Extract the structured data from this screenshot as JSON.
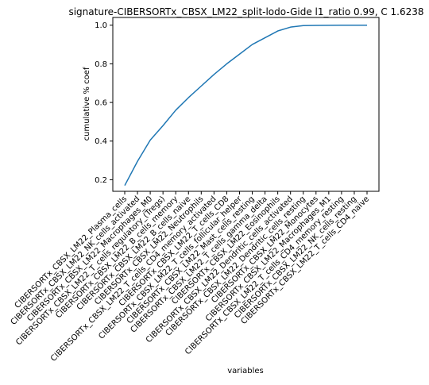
{
  "chart_data": {
    "type": "line",
    "title": "signature-CIBERSORTx_CBSX_LM22_split-lodo-Gide l1_ratio 0.99, C 1.6238",
    "xlabel": "variables",
    "ylabel": "cumulative % coef",
    "ylim": [
      0.14,
      1.04
    ],
    "yticks": [
      "0.2",
      "0.4",
      "0.6",
      "0.8",
      "1.0"
    ],
    "grid": false,
    "series_color": "#1f77b4",
    "categories": [
      "CIBERSORTx_CBSX_LM22_Plasma_cells",
      "CIBERSORTx_CBSX_LM22_NK_cells_activated",
      "CIBERSORTx_CBSX_LM22_Macrophages_M0",
      "CIBERSORTx_CBSX_LM22_T_cells_regulatory_(Tregs)",
      "CIBERSORTx_CBSX_LM22_B_cells_memory",
      "CIBERSORTx_CBSX_LM22_B_cells_naive",
      "CIBERSORTx_CBSX_LM22_Neutrophils",
      "CIBERSORTx_CBSX_LM22_T_cells_CD4_memory_activated",
      "CIBERSORTx_CBSX_LM22_T_cells_CD8",
      "CIBERSORTx_CBSX_LM22_T_cells_follicular_helper",
      "CIBERSORTx_CBSX_LM22_Mast_cells_resting",
      "CIBERSORTx_CBSX_LM22_T_cells_gamma_delta",
      "CIBERSORTx_CBSX_LM22_Eosinophils",
      "CIBERSORTx_CBSX_LM22_Dendritic_cells_activated",
      "CIBERSORTx_CBSX_LM22_Dendritic_cells_resting",
      "CIBERSORTx_CBSX_LM22_Monocytes",
      "CIBERSORTx_CBSX_LM22_Macrophages_M1",
      "CIBERSORTx_CBSX_LM22_T_cells_CD4_memory_resting",
      "CIBERSORTx_CBSX_LM22_NK_cells_resting",
      "CIBERSORTx_CBSX_LM22_T_cells_CD4_naive"
    ],
    "values": [
      0.17,
      0.295,
      0.405,
      0.48,
      0.56,
      0.625,
      0.685,
      0.745,
      0.8,
      0.85,
      0.9,
      0.935,
      0.97,
      0.99,
      0.998,
      0.999,
      0.9995,
      0.9998,
      0.9999,
      1.0
    ]
  }
}
